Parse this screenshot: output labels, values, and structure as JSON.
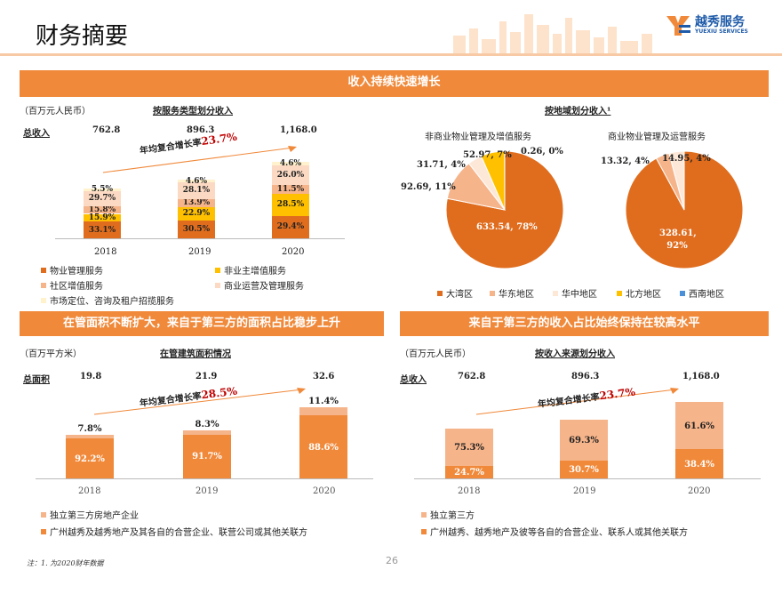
{
  "header": {
    "title": "财务摘要",
    "logo_cn": "越秀服务",
    "logo_en": "YUEXIU SERVICES"
  },
  "top_banner": "收入持续快速增长",
  "units_rmb": "（百万元人民币）",
  "units_sqm": "（百万平方米）",
  "chart1": {
    "subtitle": "按服务类型划分收入",
    "total_label": "总收入",
    "totals": [
      "762.8",
      "896.3",
      "1,168.0"
    ],
    "cagr_text": "年均复合增长率",
    "cagr_value": "23.7%",
    "years": [
      "2018",
      "2019",
      "2020"
    ],
    "legend": [
      "物业管理服务",
      "非业主增值服务",
      "社区增值服务",
      "商业运营及管理服务",
      "市场定位、咨询及租户招揽服务"
    ]
  },
  "chart2": {
    "subtitle": "按地域划分收入¹",
    "pie1_title": "非商业物业管理及增值服务",
    "pie1_labels": [
      "633.54, 78%",
      "92.69, 11%",
      "31.71, 4%",
      "52.97, 7%",
      "0.26, 0%"
    ],
    "pie2_title": "商业物业管理及运营服务",
    "pie2_labels": [
      "328.61, 92%",
      "13.32, 4%",
      "14.95, 4%"
    ],
    "legend": [
      "大湾区",
      "华东地区",
      "华中地区",
      "北方地区",
      "西南地区"
    ]
  },
  "banner_left": "在管面积不断扩大，来自于第三方的面积占比稳步上升",
  "banner_right": "来自于第三方的收入占比始终保持在较高水平",
  "chart3": {
    "subtitle": "在管建筑面积情况",
    "total_label": "总面积",
    "totals": [
      "19.8",
      "21.9",
      "32.6"
    ],
    "cagr_text": "年均复合增长率",
    "cagr_value": "28.5%",
    "years": [
      "2018",
      "2019",
      "2020"
    ],
    "legend": [
      "独立第三方房地产企业",
      "广州越秀及越秀地产及其各自的合营企业、联营公司或其他关联方"
    ]
  },
  "chart4": {
    "subtitle": "按收入来源划分收入",
    "total_label": "总收入",
    "totals": [
      "762.8",
      "896.3",
      "1,168.0"
    ],
    "cagr_text": "年均复合增长率",
    "cagr_value": "23.7%",
    "years": [
      "2018",
      "2019",
      "2020"
    ],
    "legend": [
      "独立第三方",
      "广州越秀、越秀地产及彼等各自的合营企业、联系人或其他关联方"
    ]
  },
  "footnote": "注：1. 为2020财年数据",
  "page_number": "26",
  "chart_data": [
    {
      "type": "bar",
      "categories": [
        "2018",
        "2019",
        "2020"
      ],
      "series": [
        {
          "name": "物业管理服务",
          "values": [
            33.1,
            30.5,
            29.4
          ]
        },
        {
          "name": "非业主增值服务",
          "values": [
            15.9,
            22.9,
            28.5
          ]
        },
        {
          "name": "社区增值服务",
          "values": [
            15.8,
            13.9,
            11.5
          ]
        },
        {
          "name": "商业运营及管理服务",
          "values": [
            29.7,
            28.1,
            26.0
          ]
        },
        {
          "name": "市场定位、咨询及租户招揽服务",
          "values": [
            5.5,
            4.6,
            4.6
          ]
        }
      ],
      "totals": [
        762.8,
        896.3,
        1168.0
      ]
    },
    {
      "type": "pie",
      "title": "非商业物业管理及增值服务",
      "labels": [
        "大湾区",
        "华东地区",
        "华中地区",
        "北方地区",
        "西南地区"
      ],
      "values": [
        633.54,
        92.69,
        31.71,
        52.97,
        0.26
      ]
    },
    {
      "type": "pie",
      "title": "商业物业管理及运营服务",
      "labels": [
        "大湾区",
        "华东地区",
        "华中地区"
      ],
      "values": [
        328.61,
        13.32,
        14.95
      ]
    },
    {
      "type": "bar",
      "categories": [
        "2018",
        "2019",
        "2020"
      ],
      "series": [
        {
          "name": "广州越秀及越秀地产及其各自的合营企业、联营公司或其他关联方",
          "values": [
            92.2,
            91.7,
            88.6
          ]
        },
        {
          "name": "独立第三方房地产企业",
          "values": [
            7.8,
            8.3,
            11.4
          ]
        }
      ],
      "totals": [
        19.8,
        21.9,
        32.6
      ]
    },
    {
      "type": "bar",
      "categories": [
        "2018",
        "2019",
        "2020"
      ],
      "series": [
        {
          "name": "广州越秀、越秀地产及彼等各自的合营企业、联系人或其他关联方",
          "values": [
            24.7,
            30.7,
            38.4
          ]
        },
        {
          "name": "独立第三方",
          "values": [
            75.3,
            69.3,
            61.6
          ]
        }
      ],
      "totals": [
        762.8,
        896.3,
        1168.0
      ]
    }
  ],
  "colors": {
    "orange": "#f0893a",
    "dark_orange": "#e06d1e",
    "yellow": "#ffc000",
    "peach": "#f6b48a",
    "light_peach": "#fbd9c3",
    "light": "#fde8d8",
    "cream": "#fff2cc",
    "blue": "#4a90d9",
    "red": "#c00000"
  }
}
